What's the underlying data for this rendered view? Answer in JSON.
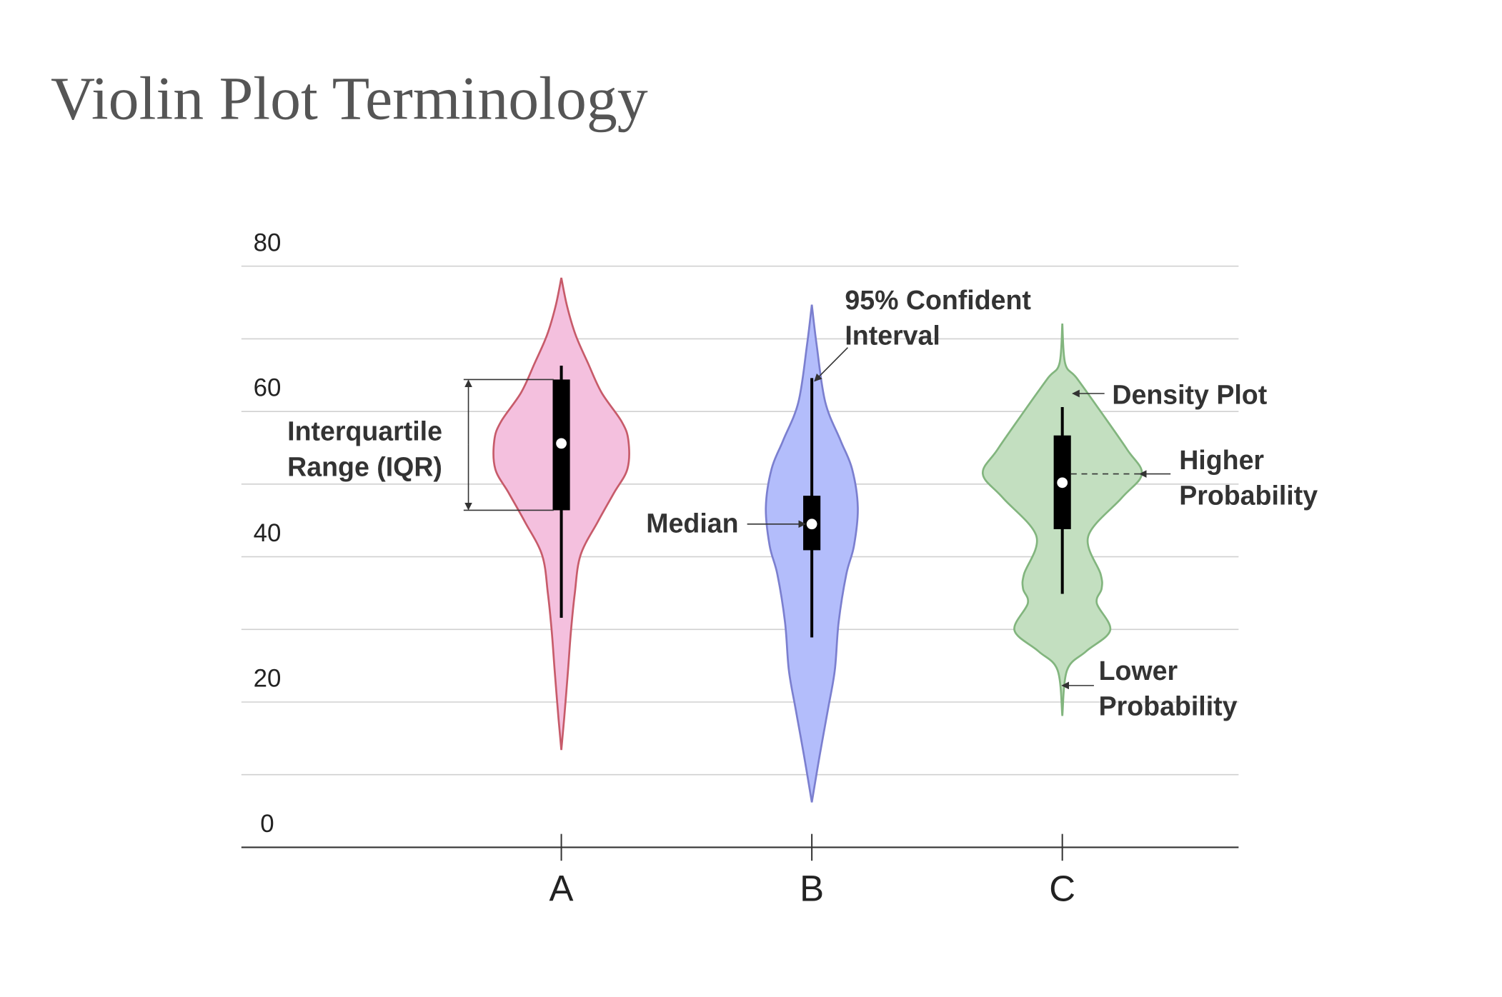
{
  "chart_data": {
    "type": "violin",
    "title": "Violin Plot Terminology",
    "categories": [
      "A",
      "B",
      "C"
    ],
    "ylim": [
      0,
      80
    ],
    "yticks": [
      0,
      20,
      40,
      60,
      80
    ],
    "minor_yticks": [
      10,
      30,
      50,
      70
    ],
    "grid": true,
    "violins": [
      {
        "color": "#f4c0de",
        "stroke": "#c75b6a",
        "q1": 46.4,
        "q3": 64.4,
        "median": 55.6,
        "whisker_low": 31.6,
        "whisker_high": 66.3,
        "density_y": [
          78.4,
          74.5,
          70.5,
          66.6,
          62.6,
          58.6,
          56.0,
          52.1,
          48.8,
          44.8,
          40.2,
          34.9,
          29.7,
          24.4,
          17.8,
          13.4
        ],
        "density": [
          0,
          6,
          15,
          28,
          42,
          63,
          70,
          69,
          55,
          38,
          20,
          14,
          10,
          7,
          3,
          0
        ]
      },
      {
        "color": "#b3bdfb",
        "stroke": "#7b7fcf",
        "q1": 40.9,
        "q3": 48.4,
        "median": 44.5,
        "whisker_low": 28.9,
        "whisker_high": 64.6,
        "density_y": [
          74.7,
          69.2,
          61.3,
          56.0,
          52.1,
          46.8,
          41.5,
          37.6,
          31.0,
          24.4,
          19.1,
          12.5,
          6.2
        ],
        "density": [
          0,
          5,
          14,
          30,
          42,
          48,
          44,
          36,
          28,
          24,
          17,
          8,
          0
        ]
      },
      {
        "color": "#c3dfc0",
        "stroke": "#82b57e",
        "q1": 43.8,
        "q3": 56.7,
        "median": 50.2,
        "whisker_low": 34.9,
        "whisker_high": 60.6,
        "density_y": [
          72.1,
          66.6,
          64.6,
          60.0,
          54.7,
          51.4,
          48.1,
          42.8,
          37.6,
          35.6,
          33.6,
          29.9,
          27.0,
          24.4,
          18.1
        ],
        "density": [
          0,
          3,
          15,
          40,
          68,
          83,
          62,
          27,
          40,
          41,
          36,
          50,
          25,
          5,
          0
        ]
      }
    ],
    "annotations": {
      "iqr": [
        "Interquartile",
        "Range (IQR)"
      ],
      "median": [
        "Median"
      ],
      "ci": [
        "95% Confident",
        "Interval"
      ],
      "density": [
        "Density Plot"
      ],
      "higher": [
        "Higher",
        "Probability"
      ],
      "lower": [
        "Lower",
        "Probability"
      ]
    }
  }
}
